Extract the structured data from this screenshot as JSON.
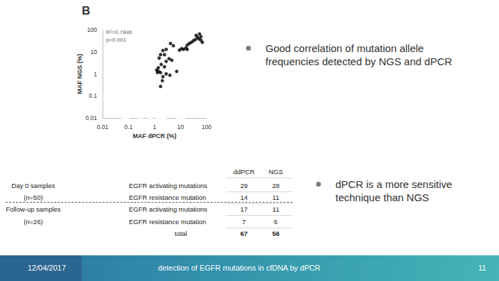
{
  "chart_data": {
    "type": "scatter",
    "x_label": "MAF dPCR (%)",
    "y_label": "MAF NGS (%)",
    "annotations": [
      "R²=0.7846",
      "p<0.001"
    ],
    "log": true,
    "grid": false,
    "xlim": [
      0.01,
      100
    ],
    "ylim": [
      0.01,
      100
    ],
    "xticks": [
      0.01,
      0.1,
      1,
      10,
      100
    ],
    "yticks": [
      0.01,
      0.1,
      1,
      10,
      100
    ],
    "series": [
      {
        "marker": "circle",
        "color": "#000000",
        "x": [
          39.8,
          45,
          51,
          54,
          61,
          37,
          31,
          26,
          21.5,
          18,
          16,
          11,
          13,
          9.1,
          5.3,
          4.1,
          2.8,
          2.4,
          2.1,
          1.7,
          1.5,
          3.6,
          4.6,
          2.8,
          1.8,
          1.4,
          1.2,
          1.4,
          1.3,
          1.7,
          2.4,
          2.8,
          2.1,
          2,
          1.7,
          3.9,
          7.1,
          61,
          69,
          18
        ],
        "y": [
          56,
          45,
          39,
          65,
          49,
          36,
          32,
          27,
          24,
          20,
          15,
          14,
          13,
          12,
          19,
          24,
          13,
          7.5,
          11.5,
          7.5,
          5.2,
          4.9,
          4.2,
          3.7,
          2.7,
          1.9,
          1.5,
          1.3,
          1.15,
          1.15,
          2.1,
          1,
          0.75,
          0.49,
          0.27,
          0.87,
          1.3,
          34,
          27,
          13
        ]
      },
      {
        "marker": "emptyCircle",
        "color": "#555555",
        "x": [
          0.063,
          0.087,
          0.29,
          0.69,
          1.4,
          1.7,
          2,
          2.4,
          8.6,
          13
        ],
        "y": [
          0.01,
          0.01,
          0.01,
          0.01,
          0.01,
          0.01,
          0.01,
          0.01,
          0.01,
          0.01
        ]
      }
    ]
  },
  "slide": {
    "panel_label": "B",
    "bullets": [
      "Good correlation of mutation allele frequencies detected by NGS and dPCR",
      "dPCR is a more sensitive technique than NGS"
    ],
    "table": {
      "header": [
        "ddPCR",
        "NGS"
      ],
      "rows": [
        [
          "Day 0 samples",
          "EGFR activating mutations",
          29,
          28
        ],
        [
          "(n=50)",
          "EGFR resistance mutation",
          14,
          11
        ],
        [
          "Follow-up samples",
          "EGFR activating mutations",
          17,
          11
        ],
        [
          "(n=26)",
          "EGFR resistance mutation",
          7,
          6
        ]
      ],
      "total": [
        "total",
        67,
        56
      ]
    },
    "footer": {
      "date": "12/04/2017",
      "title": "detection of EGFR mutations in cfDNA by dPCR",
      "page": 11
    }
  }
}
